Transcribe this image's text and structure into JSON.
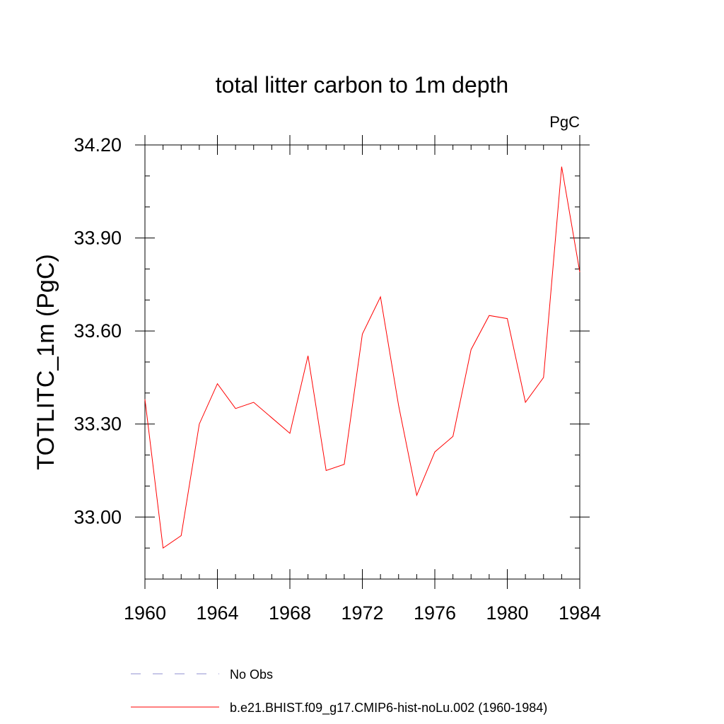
{
  "chart_data": {
    "type": "line",
    "title": "total litter carbon to 1m depth",
    "units_label": "PgC",
    "ylabel": "TOTLITC_1m  (PgC)",
    "xlabel": "",
    "xlim": [
      1960,
      1984
    ],
    "ylim": [
      32.8,
      34.2
    ],
    "xticks": [
      1960,
      1964,
      1968,
      1972,
      1976,
      1980,
      1984
    ],
    "xtick_labels": [
      "1960",
      "1964",
      "1968",
      "1972",
      "1976",
      "1980",
      "1984"
    ],
    "yticks": [
      33.0,
      33.3,
      33.6,
      33.9,
      34.2
    ],
    "ytick_labels": [
      "33.00",
      "33.30",
      "33.60",
      "33.90",
      "34.20"
    ],
    "grid": false,
    "legend_placement": "bottom",
    "series": [
      {
        "name": "b.e21.BHIST.f09_g17.CMIP6-hist-noLu.002 (1960-1984)",
        "color": "#ff0000",
        "x": [
          1960,
          1961,
          1962,
          1963,
          1964,
          1965,
          1966,
          1967,
          1968,
          1969,
          1970,
          1971,
          1972,
          1973,
          1974,
          1975,
          1976,
          1977,
          1978,
          1979,
          1980,
          1981,
          1982,
          1983,
          1984
        ],
        "values": [
          33.38,
          32.9,
          32.94,
          33.3,
          33.43,
          33.35,
          33.37,
          33.32,
          33.27,
          33.52,
          33.15,
          33.17,
          33.59,
          33.71,
          33.36,
          33.07,
          33.21,
          33.26,
          33.54,
          33.65,
          33.64,
          33.37,
          33.45,
          34.13,
          33.79
        ]
      }
    ],
    "legend": [
      {
        "label": "No Obs",
        "style": "dashed",
        "color": "#8f8fd0"
      },
      {
        "label": "b.e21.BHIST.f09_g17.CMIP6-hist-noLu.002 (1960-1984)",
        "style": "solid",
        "color": "#ff0000"
      }
    ]
  }
}
